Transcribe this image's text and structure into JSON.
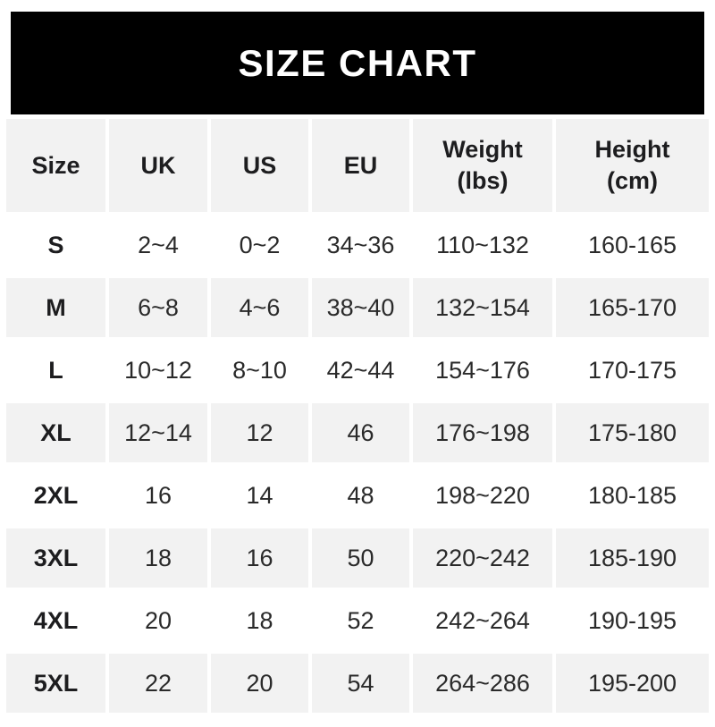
{
  "banner": {
    "title": "SIZE CHART"
  },
  "colors": {
    "banner_bg": "#000000",
    "banner_text": "#ffffff",
    "stripe_row_bg": "#f2f2f2",
    "plain_row_bg": "#ffffff",
    "header_text": "#1d1d1f",
    "body_text": "#2a2a2a"
  },
  "chart_data": {
    "type": "table",
    "title": "SIZE CHART",
    "columns": [
      "Size",
      "UK",
      "US",
      "EU",
      "Weight (lbs)",
      "Height (cm)"
    ],
    "rows": [
      [
        "S",
        "2~4",
        "0~2",
        "34~36",
        "110~132",
        "160-165"
      ],
      [
        "M",
        "6~8",
        "4~6",
        "38~40",
        "132~154",
        "165-170"
      ],
      [
        "L",
        "10~12",
        "8~10",
        "42~44",
        "154~176",
        "170-175"
      ],
      [
        "XL",
        "12~14",
        "12",
        "46",
        "176~198",
        "175-180"
      ],
      [
        "2XL",
        "16",
        "14",
        "48",
        "198~220",
        "180-185"
      ],
      [
        "3XL",
        "18",
        "16",
        "50",
        "220~242",
        "185-190"
      ],
      [
        "4XL",
        "20",
        "18",
        "52",
        "242~264",
        "190-195"
      ],
      [
        "5XL",
        "22",
        "20",
        "54",
        "264~286",
        "195-200"
      ]
    ]
  }
}
